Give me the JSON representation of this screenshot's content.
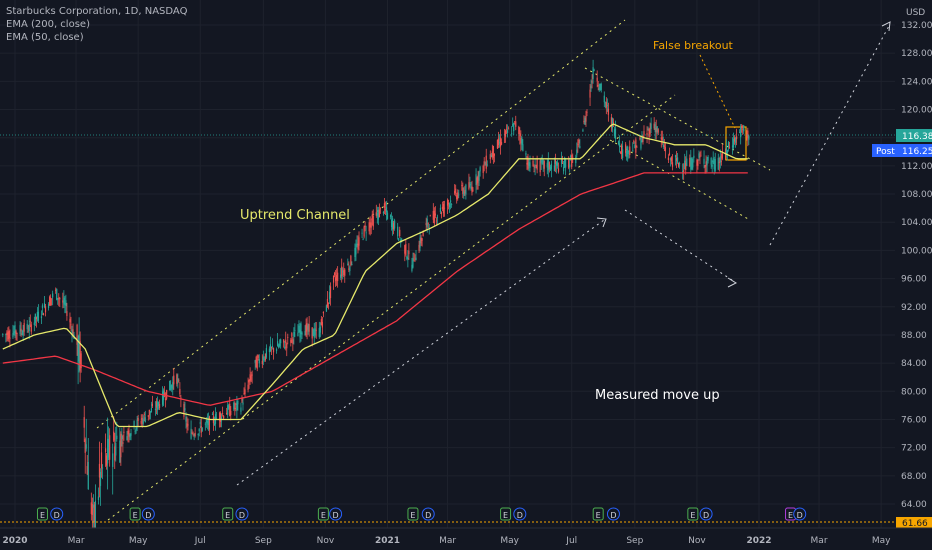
{
  "legend": {
    "symbol": "Starbucks Corporation, 1D, NASDAQ",
    "ema200": "EMA (200, close)",
    "ema50": "EMA (50, close)"
  },
  "colors": {
    "background": "#131722",
    "candle_up": "#26a69a",
    "candle_down": "#ef5350",
    "ema200": "#f23645",
    "ema50": "#e6e96b",
    "channel": "#e6e96b",
    "projection": "#d1d4dc",
    "false_breakout": "#f7a600",
    "current_price": "#26a69a",
    "post_price": "#2962ff",
    "last_low": "#f7a600"
  },
  "chart_data": {
    "type": "candlestick",
    "title": "Starbucks Corporation, 1D, NASDAQ",
    "yunit": "USD",
    "ylim": [
      60,
      134
    ],
    "price_ticks": [
      64,
      68,
      72,
      76,
      80,
      84,
      88,
      92,
      96,
      100,
      104,
      108,
      112,
      116,
      120,
      124,
      128,
      132
    ],
    "time_ticks": [
      "2020",
      "Mar",
      "May",
      "Jul",
      "Sep",
      "Nov",
      "2021",
      "Mar",
      "May",
      "Jul",
      "Sep",
      "Nov",
      "2022",
      "Mar",
      "May"
    ],
    "price_path": [
      [
        "2019-12-20",
        88
      ],
      [
        "2020-01-15",
        89
      ],
      [
        "2020-02-10",
        94
      ],
      [
        "2020-02-20",
        92
      ],
      [
        "2020-03-05",
        85
      ],
      [
        "2020-03-12",
        70
      ],
      [
        "2020-03-18",
        61
      ],
      [
        "2020-03-25",
        68
      ],
      [
        "2020-04-05",
        72
      ],
      [
        "2020-04-20",
        74
      ],
      [
        "2020-05-05",
        76
      ],
      [
        "2020-05-20",
        78
      ],
      [
        "2020-06-08",
        82
      ],
      [
        "2020-06-20",
        74
      ],
      [
        "2020-07-05",
        75
      ],
      [
        "2020-07-25",
        77
      ],
      [
        "2020-08-10",
        78
      ],
      [
        "2020-08-25",
        84
      ],
      [
        "2020-09-10",
        86
      ],
      [
        "2020-09-25",
        87
      ],
      [
        "2020-10-10",
        89
      ],
      [
        "2020-10-25",
        88
      ],
      [
        "2020-11-10",
        96
      ],
      [
        "2020-11-25",
        98
      ],
      [
        "2020-12-10",
        103
      ],
      [
        "2020-12-28",
        106
      ],
      [
        "2021-01-10",
        103
      ],
      [
        "2021-01-25",
        98
      ],
      [
        "2021-02-10",
        104
      ],
      [
        "2021-02-25",
        106
      ],
      [
        "2021-03-10",
        108
      ],
      [
        "2021-03-25",
        109
      ],
      [
        "2021-04-10",
        113
      ],
      [
        "2021-04-25",
        116
      ],
      [
        "2021-05-08",
        118
      ],
      [
        "2021-05-20",
        112
      ],
      [
        "2021-06-05",
        112
      ],
      [
        "2021-06-20",
        112
      ],
      [
        "2021-07-05",
        113
      ],
      [
        "2021-07-15",
        119
      ],
      [
        "2021-07-23",
        126
      ],
      [
        "2021-08-05",
        120
      ],
      [
        "2021-08-20",
        114
      ],
      [
        "2021-09-05",
        115
      ],
      [
        "2021-09-20",
        118
      ],
      [
        "2021-10-05",
        113
      ],
      [
        "2021-10-20",
        112
      ],
      [
        "2021-11-05",
        113
      ],
      [
        "2021-11-20",
        112
      ],
      [
        "2021-12-05",
        115
      ],
      [
        "2021-12-15",
        117
      ],
      [
        "2021-12-22",
        116.4
      ]
    ],
    "ema50_path": [
      [
        "2019-12-20",
        86
      ],
      [
        "2020-01-20",
        88
      ],
      [
        "2020-02-20",
        89
      ],
      [
        "2020-03-10",
        86
      ],
      [
        "2020-04-10",
        75
      ],
      [
        "2020-05-10",
        75
      ],
      [
        "2020-06-10",
        77
      ],
      [
        "2020-07-10",
        76
      ],
      [
        "2020-08-10",
        76
      ],
      [
        "2020-09-10",
        81
      ],
      [
        "2020-10-10",
        86
      ],
      [
        "2020-11-10",
        88
      ],
      [
        "2020-12-10",
        97
      ],
      [
        "2021-01-10",
        101
      ],
      [
        "2021-02-10",
        103
      ],
      [
        "2021-03-10",
        105
      ],
      [
        "2021-04-10",
        108
      ],
      [
        "2021-05-10",
        113
      ],
      [
        "2021-06-10",
        113
      ],
      [
        "2021-07-10",
        113
      ],
      [
        "2021-08-10",
        118
      ],
      [
        "2021-09-10",
        116
      ],
      [
        "2021-10-10",
        115
      ],
      [
        "2021-11-10",
        115
      ],
      [
        "2021-12-10",
        113
      ],
      [
        "2021-12-22",
        113
      ]
    ],
    "ema200_path": [
      [
        "2019-12-20",
        84
      ],
      [
        "2020-02-10",
        85
      ],
      [
        "2020-03-20",
        83
      ],
      [
        "2020-05-10",
        80
      ],
      [
        "2020-07-10",
        78
      ],
      [
        "2020-09-10",
        80
      ],
      [
        "2020-11-10",
        85
      ],
      [
        "2021-01-10",
        90
      ],
      [
        "2021-03-10",
        97
      ],
      [
        "2021-05-10",
        103
      ],
      [
        "2021-07-10",
        108
      ],
      [
        "2021-09-10",
        111
      ],
      [
        "2021-11-10",
        111
      ],
      [
        "2021-12-22",
        111
      ]
    ],
    "last_price": "116.38",
    "post_label": "Post",
    "post_price": "116.25",
    "last_low": "61.66",
    "annotations": {
      "uptrend": "Uptrend Channel",
      "measured": "Measured move up",
      "false_breakout": "False breakout"
    },
    "events": [
      "E",
      "D"
    ]
  }
}
